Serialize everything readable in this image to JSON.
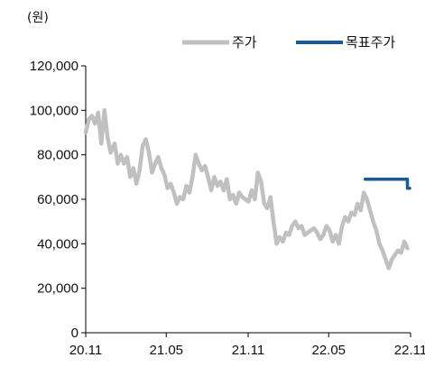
{
  "chart_data": {
    "type": "line",
    "unit_label": "(원)",
    "ylim": [
      0,
      120000
    ],
    "y_ticks": [
      "0",
      "20,000",
      "40,000",
      "60,000",
      "80,000",
      "100,000",
      "120,000"
    ],
    "y_tick_values": [
      0,
      20000,
      40000,
      60000,
      80000,
      100000,
      120000
    ],
    "x_range": [
      "2020-11",
      "2022-11"
    ],
    "x_ticks": [
      "20.11",
      "21.05",
      "21.11",
      "22.05",
      "22.11"
    ],
    "x_tick_values": [
      "2020-11",
      "2021-05",
      "2021-11",
      "2022-05",
      "2022-11"
    ],
    "grid": false,
    "legend_position": "top-right",
    "series": [
      {
        "name": "주가",
        "color": "#c0c0c0",
        "points": [
          [
            "2020-11-01",
            90000
          ],
          [
            "2020-11-08",
            96000
          ],
          [
            "2020-11-15",
            97500
          ],
          [
            "2020-11-22",
            94000
          ],
          [
            "2020-11-29",
            99000
          ],
          [
            "2020-12-06",
            85000
          ],
          [
            "2020-12-13",
            100000
          ],
          [
            "2020-12-20",
            88000
          ],
          [
            "2020-12-27",
            81000
          ],
          [
            "2021-01-05",
            85000
          ],
          [
            "2021-01-12",
            76000
          ],
          [
            "2021-01-19",
            80000
          ],
          [
            "2021-01-26",
            76000
          ],
          [
            "2021-02-02",
            79000
          ],
          [
            "2021-02-09",
            70000
          ],
          [
            "2021-02-16",
            74000
          ],
          [
            "2021-02-23",
            67000
          ],
          [
            "2021-03-02",
            73000
          ],
          [
            "2021-03-09",
            84000
          ],
          [
            "2021-03-16",
            87000
          ],
          [
            "2021-03-23",
            81000
          ],
          [
            "2021-03-30",
            72000
          ],
          [
            "2021-04-06",
            76000
          ],
          [
            "2021-04-13",
            79000
          ],
          [
            "2021-04-20",
            74000
          ],
          [
            "2021-04-27",
            71000
          ],
          [
            "2021-05-04",
            65000
          ],
          [
            "2021-05-11",
            67000
          ],
          [
            "2021-05-18",
            63000
          ],
          [
            "2021-05-25",
            58000
          ],
          [
            "2021-06-01",
            61000
          ],
          [
            "2021-06-08",
            60000
          ],
          [
            "2021-06-15",
            66000
          ],
          [
            "2021-06-22",
            63000
          ],
          [
            "2021-06-29",
            70000
          ],
          [
            "2021-07-06",
            80000
          ],
          [
            "2021-07-13",
            76000
          ],
          [
            "2021-07-20",
            73000
          ],
          [
            "2021-07-27",
            75000
          ],
          [
            "2021-08-03",
            70000
          ],
          [
            "2021-08-10",
            64000
          ],
          [
            "2021-08-17",
            70000
          ],
          [
            "2021-08-24",
            66000
          ],
          [
            "2021-08-31",
            68000
          ],
          [
            "2021-09-07",
            64000
          ],
          [
            "2021-09-14",
            69000
          ],
          [
            "2021-09-21",
            60000
          ],
          [
            "2021-09-28",
            62000
          ],
          [
            "2021-10-05",
            58000
          ],
          [
            "2021-10-12",
            63000
          ],
          [
            "2021-10-19",
            61000
          ],
          [
            "2021-10-26",
            60000
          ],
          [
            "2021-11-02",
            59000
          ],
          [
            "2021-11-09",
            64000
          ],
          [
            "2021-11-16",
            60000
          ],
          [
            "2021-11-23",
            72000
          ],
          [
            "2021-11-30",
            68000
          ],
          [
            "2021-12-07",
            58000
          ],
          [
            "2021-12-14",
            56000
          ],
          [
            "2021-12-21",
            61000
          ],
          [
            "2021-12-28",
            50000
          ],
          [
            "2022-01-04",
            40000
          ],
          [
            "2022-01-11",
            43000
          ],
          [
            "2022-01-18",
            41000
          ],
          [
            "2022-01-25",
            45000
          ],
          [
            "2022-02-01",
            44000
          ],
          [
            "2022-02-08",
            48000
          ],
          [
            "2022-02-15",
            50000
          ],
          [
            "2022-02-22",
            47000
          ],
          [
            "2022-03-01",
            48000
          ],
          [
            "2022-03-08",
            44000
          ],
          [
            "2022-03-15",
            45000
          ],
          [
            "2022-03-22",
            46000
          ],
          [
            "2022-03-29",
            47000
          ],
          [
            "2022-04-05",
            45000
          ],
          [
            "2022-04-12",
            42000
          ],
          [
            "2022-04-19",
            44000
          ],
          [
            "2022-04-26",
            48000
          ],
          [
            "2022-05-03",
            46000
          ],
          [
            "2022-05-10",
            41000
          ],
          [
            "2022-05-17",
            44000
          ],
          [
            "2022-05-24",
            40000
          ],
          [
            "2022-05-31",
            48000
          ],
          [
            "2022-06-07",
            52000
          ],
          [
            "2022-06-14",
            50000
          ],
          [
            "2022-06-21",
            54000
          ],
          [
            "2022-06-28",
            53000
          ],
          [
            "2022-07-05",
            58000
          ],
          [
            "2022-07-12",
            55000
          ],
          [
            "2022-07-19",
            63000
          ],
          [
            "2022-07-26",
            60000
          ],
          [
            "2022-08-02",
            55000
          ],
          [
            "2022-08-09",
            50000
          ],
          [
            "2022-08-16",
            46000
          ],
          [
            "2022-08-23",
            40000
          ],
          [
            "2022-08-30",
            37000
          ],
          [
            "2022-09-06",
            33000
          ],
          [
            "2022-09-13",
            29000
          ],
          [
            "2022-09-20",
            33000
          ],
          [
            "2022-09-27",
            35000
          ],
          [
            "2022-10-04",
            37000
          ],
          [
            "2022-10-11",
            36000
          ],
          [
            "2022-10-18",
            41000
          ],
          [
            "2022-10-25",
            38000
          ]
        ]
      },
      {
        "name": "목표주가",
        "color": "#1a5a9a",
        "points": [
          [
            "2022-07-22",
            69000
          ],
          [
            "2022-10-25",
            69000
          ],
          [
            "2022-10-25",
            65000
          ],
          [
            "2022-10-30",
            65000
          ]
        ]
      }
    ]
  }
}
